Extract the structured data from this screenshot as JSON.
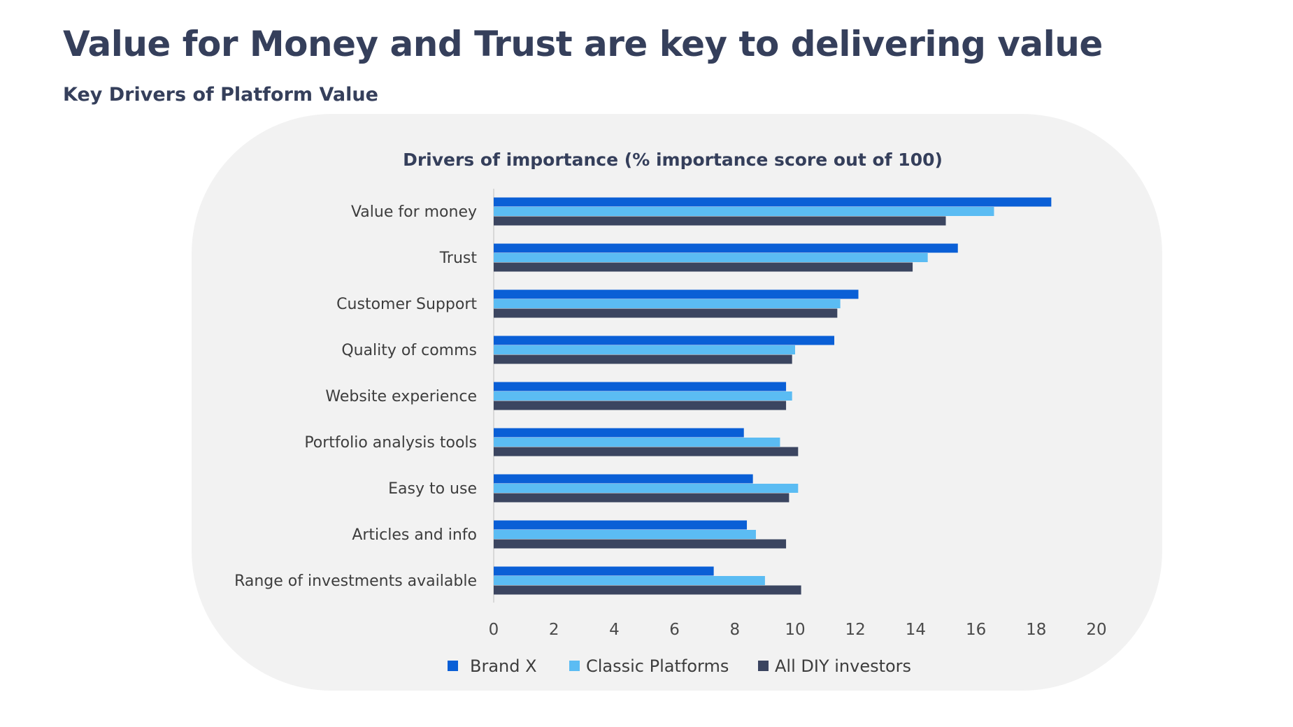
{
  "slide": {
    "title": "Value for Money and Trust are key to delivering value",
    "subtitle": "Key Drivers of Platform Value"
  },
  "colors": {
    "title_text": "#353f5b",
    "panel_background": "#f2f2f2"
  },
  "chart_data": {
    "type": "bar",
    "orientation": "horizontal",
    "title": "Drivers of importance (% importance score out of 100)",
    "categories": [
      "Value for money",
      "Trust",
      "Customer Support",
      "Quality of comms",
      "Website experience",
      "Portfolio analysis tools",
      "Easy to use",
      "Articles and info",
      "Range of investments available"
    ],
    "series": [
      {
        "name": "Brand X",
        "color": "#0a5fd6",
        "values": [
          18.5,
          15.4,
          12.1,
          11.3,
          9.7,
          8.3,
          8.6,
          8.4,
          7.3
        ]
      },
      {
        "name": "Classic Platforms",
        "color": "#5bbcf3",
        "values": [
          16.6,
          14.4,
          11.5,
          10.0,
          9.9,
          9.5,
          10.1,
          8.7,
          9.0
        ]
      },
      {
        "name": "All DIY investors",
        "color": "#3b4560",
        "values": [
          15.0,
          13.9,
          11.4,
          9.9,
          9.7,
          10.1,
          9.8,
          9.7,
          10.2
        ]
      }
    ],
    "xlim": [
      0,
      20
    ],
    "x_ticks": [
      0,
      2,
      4,
      6,
      8,
      10,
      12,
      14,
      16,
      18,
      20
    ],
    "grid": false,
    "legend_position": "bottom"
  }
}
